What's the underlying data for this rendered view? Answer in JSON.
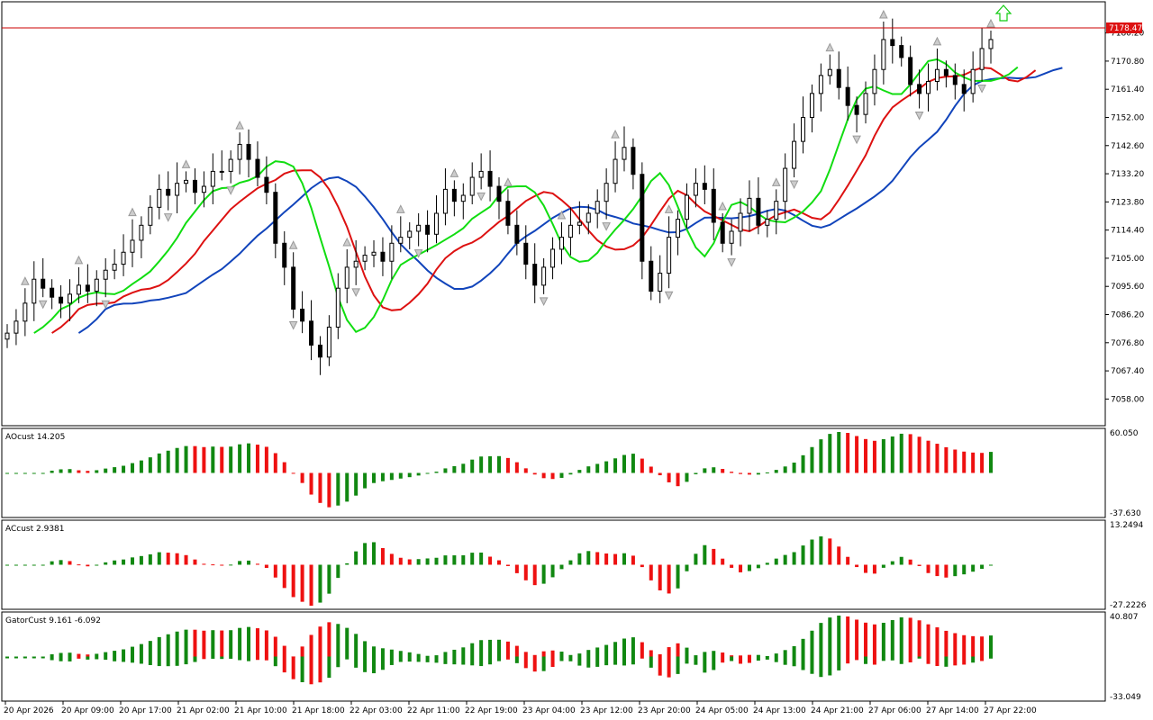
{
  "chart_data": {
    "type": "candlestick",
    "symbol_current_price": "7178.47",
    "price_axis": {
      "min": 7050,
      "max": 7190,
      "ticks": [
        "7180.20",
        "7170.80",
        "7161.40",
        "7152.00",
        "7142.60",
        "7133.20",
        "7123.80",
        "7114.40",
        "7105.00",
        "7095.60",
        "7086.20",
        "7076.80",
        "7067.40",
        "7058.00"
      ]
    },
    "time_axis": {
      "labels": [
        "20 Apr 2026",
        "20 Apr 09:00",
        "20 Apr 17:00",
        "21 Apr 02:00",
        "21 Apr 10:00",
        "21 Apr 18:00",
        "22 Apr 03:00",
        "22 Apr 11:00",
        "22 Apr 19:00",
        "23 Apr 04:00",
        "23 Apr 12:00",
        "23 Apr 20:00",
        "24 Apr 05:00",
        "24 Apr 13:00",
        "24 Apr 21:00",
        "27 Apr 06:00",
        "27 Apr 14:00",
        "27 Apr 22:00"
      ]
    },
    "candles_close": [
      7080,
      7084,
      7090,
      7098,
      7095,
      7092,
      7090,
      7093,
      7096,
      7094,
      7098,
      7101,
      7103,
      7107,
      7111,
      7116,
      7122,
      7128,
      7126,
      7130,
      7131,
      7127,
      7129,
      7134,
      7134,
      7138,
      7143,
      7138,
      7132,
      7127,
      7110,
      7102,
      7088,
      7084,
      7076,
      7072,
      7082,
      7095,
      7102,
      7104,
      7106,
      7107,
      7104,
      7110,
      7112,
      7114,
      7116,
      7113,
      7120,
      7128,
      7124,
      7126,
      7132,
      7134,
      7129,
      7124,
      7116,
      7110,
      7103,
      7096,
      7102,
      7108,
      7112,
      7116,
      7117,
      7120,
      7124,
      7130,
      7138,
      7142,
      7133,
      7104,
      7094,
      7100,
      7112,
      7118,
      7126,
      7130,
      7128,
      7117,
      7110,
      7114,
      7120,
      7125,
      7116,
      7118,
      7124,
      7135,
      7144,
      7152,
      7160,
      7166,
      7168,
      7162,
      7156,
      7153,
      7160,
      7168,
      7178,
      7176,
      7172,
      7163,
      7160,
      7164,
      7168,
      7166,
      7163,
      7160,
      7168,
      7175,
      7178
    ],
    "overlay_lines": [
      {
        "name": "jaw",
        "color": "#1144bb"
      },
      {
        "name": "teeth",
        "color": "#dd1111"
      },
      {
        "name": "lips",
        "color": "#11dd11"
      }
    ],
    "panels": [
      {
        "label": "AOcust 14.205",
        "max_label": "60.050",
        "min_label": "-37.630"
      },
      {
        "label": "ACcust 2.9381",
        "max_label": "13.2494",
        "min_label": "-27.2226"
      },
      {
        "label": "GatorCust 9.161 -6.092",
        "max_label": "40.807",
        "min_label": "-33.049"
      }
    ]
  }
}
